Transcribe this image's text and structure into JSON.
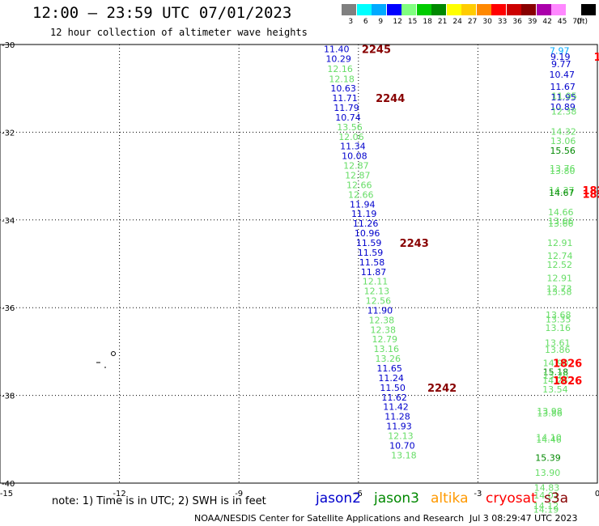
{
  "header": {
    "title": "12:00 – 23:59 UTC 07/01/2023",
    "subtitle": "12 hour collection of altimeter wave heights"
  },
  "legend": {
    "bins": [
      {
        "label": "3",
        "color": "#808080"
      },
      {
        "label": "6",
        "color": "#00ffff"
      },
      {
        "label": "9",
        "color": "#00aaff"
      },
      {
        "label": "12",
        "color": "#0000ff"
      },
      {
        "label": "15",
        "color": "#80ff80"
      },
      {
        "label": "18",
        "color": "#00cc00"
      },
      {
        "label": "21",
        "color": "#008800"
      },
      {
        "label": "24",
        "color": "#ffff00"
      },
      {
        "label": "27",
        "color": "#ffcc00"
      },
      {
        "label": "30",
        "color": "#ff8800"
      },
      {
        "label": "33",
        "color": "#ff0000"
      },
      {
        "label": "36",
        "color": "#cc0000"
      },
      {
        "label": "39",
        "color": "#880000"
      },
      {
        "label": "42",
        "color": "#aa00aa"
      },
      {
        "label": "45",
        "color": "#ff88ff"
      },
      {
        "label": "70",
        "color": "#ffffff"
      },
      {
        "label": "",
        "color": "#000000"
      }
    ],
    "unit": "(ft)"
  },
  "map": {
    "lon_range": [
      -15,
      0
    ],
    "lat_range": [
      -40,
      -30
    ],
    "x_ticks": [
      -15,
      -12,
      -9,
      -6,
      -3,
      0
    ],
    "y_ticks": [
      -30,
      -32,
      -34,
      -36,
      -38,
      -40
    ],
    "x_tick_labels": [
      "-15",
      "-12",
      "-9",
      "-6",
      "-3",
      "0"
    ],
    "y_tick_labels": [
      "-30",
      "-32",
      "-34",
      "-36",
      "-38",
      "-40"
    ],
    "gridlines": true
  },
  "observations": [
    {
      "lon": -6.55,
      "lat": -30.1,
      "text": "11.40",
      "color": "#0000cc"
    },
    {
      "lon": -6.5,
      "lat": -30.32,
      "text": "10.29",
      "color": "#0000cc"
    },
    {
      "lon": -6.46,
      "lat": -30.55,
      "text": "12.16",
      "color": "#66dd66"
    },
    {
      "lon": -6.42,
      "lat": -30.78,
      "text": "12.18",
      "color": "#66dd66"
    },
    {
      "lon": -6.38,
      "lat": -31.0,
      "text": "10.63",
      "color": "#0000cc"
    },
    {
      "lon": -6.34,
      "lat": -31.22,
      "text": "11.71",
      "color": "#0000cc"
    },
    {
      "lon": -6.3,
      "lat": -31.44,
      "text": "11.79",
      "color": "#0000cc"
    },
    {
      "lon": -6.26,
      "lat": -31.66,
      "text": "10.74",
      "color": "#0000cc"
    },
    {
      "lon": -6.22,
      "lat": -31.88,
      "text": "13.56",
      "color": "#66dd66"
    },
    {
      "lon": -6.18,
      "lat": -32.1,
      "text": "12.06",
      "color": "#66dd66"
    },
    {
      "lon": -6.14,
      "lat": -32.32,
      "text": "11.34",
      "color": "#0000cc"
    },
    {
      "lon": -6.1,
      "lat": -32.54,
      "text": "10.08",
      "color": "#0000cc"
    },
    {
      "lon": -6.06,
      "lat": -32.76,
      "text": "12.87",
      "color": "#66dd66"
    },
    {
      "lon": -6.02,
      "lat": -32.98,
      "text": "12.87",
      "color": "#66dd66"
    },
    {
      "lon": -5.98,
      "lat": -33.2,
      "text": "12.66",
      "color": "#66dd66"
    },
    {
      "lon": -5.94,
      "lat": -33.42,
      "text": "12.66",
      "color": "#66dd66"
    },
    {
      "lon": -5.9,
      "lat": -33.64,
      "text": "11.94",
      "color": "#0000cc"
    },
    {
      "lon": -5.86,
      "lat": -33.86,
      "text": "11.19",
      "color": "#0000cc"
    },
    {
      "lon": -5.82,
      "lat": -34.08,
      "text": "11.26",
      "color": "#0000cc"
    },
    {
      "lon": -5.78,
      "lat": -34.3,
      "text": "10.96",
      "color": "#0000cc"
    },
    {
      "lon": -5.74,
      "lat": -34.52,
      "text": "11.59",
      "color": "#0000cc"
    },
    {
      "lon": -5.7,
      "lat": -34.74,
      "text": "11.59",
      "color": "#0000cc"
    },
    {
      "lon": -5.66,
      "lat": -34.96,
      "text": "11.58",
      "color": "#0000cc"
    },
    {
      "lon": -5.62,
      "lat": -35.18,
      "text": "11.87",
      "color": "#0000cc"
    },
    {
      "lon": -5.58,
      "lat": -35.4,
      "text": "12.11",
      "color": "#66dd66"
    },
    {
      "lon": -5.54,
      "lat": -35.62,
      "text": "12.13",
      "color": "#66dd66"
    },
    {
      "lon": -5.5,
      "lat": -35.84,
      "text": "12.56",
      "color": "#66dd66"
    },
    {
      "lon": -5.46,
      "lat": -36.06,
      "text": "11.90",
      "color": "#0000cc"
    },
    {
      "lon": -5.42,
      "lat": -36.28,
      "text": "12.38",
      "color": "#66dd66"
    },
    {
      "lon": -5.38,
      "lat": -36.5,
      "text": "12.38",
      "color": "#66dd66"
    },
    {
      "lon": -5.34,
      "lat": -36.72,
      "text": "12.79",
      "color": "#66dd66"
    },
    {
      "lon": -5.3,
      "lat": -36.94,
      "text": "13.16",
      "color": "#66dd66"
    },
    {
      "lon": -5.26,
      "lat": -37.16,
      "text": "13.26",
      "color": "#66dd66"
    },
    {
      "lon": -5.22,
      "lat": -37.38,
      "text": "11.65",
      "color": "#0000cc"
    },
    {
      "lon": -5.18,
      "lat": -37.6,
      "text": "11.24",
      "color": "#0000cc"
    },
    {
      "lon": -5.14,
      "lat": -37.82,
      "text": "11.50",
      "color": "#0000cc"
    },
    {
      "lon": -5.1,
      "lat": -38.04,
      "text": "11.62",
      "color": "#0000cc"
    },
    {
      "lon": -5.06,
      "lat": -38.26,
      "text": "11.42",
      "color": "#0000cc"
    },
    {
      "lon": -5.02,
      "lat": -38.48,
      "text": "11.28",
      "color": "#0000cc"
    },
    {
      "lon": -4.98,
      "lat": -38.7,
      "text": "11.93",
      "color": "#0000cc"
    },
    {
      "lon": -4.94,
      "lat": -38.92,
      "text": "12.13",
      "color": "#66dd66"
    },
    {
      "lon": -4.9,
      "lat": -39.14,
      "text": "10.70",
      "color": "#0000cc"
    },
    {
      "lon": -4.86,
      "lat": -39.36,
      "text": "13.18",
      "color": "#66dd66"
    },
    {
      "lon": -0.95,
      "lat": -30.14,
      "text": "7.97",
      "color": "#00aaff"
    },
    {
      "lon": -0.93,
      "lat": -30.28,
      "text": "9.19",
      "color": "#0000cc"
    },
    {
      "lon": -0.91,
      "lat": -30.44,
      "text": "9.77",
      "color": "#0000cc"
    },
    {
      "lon": -0.89,
      "lat": -30.68,
      "text": "10.47",
      "color": "#0000cc"
    },
    {
      "lon": -0.87,
      "lat": -30.96,
      "text": "11.67",
      "color": "#0000cc"
    },
    {
      "lon": -0.85,
      "lat": -31.2,
      "text": "11.95",
      "color": "#0000cc"
    },
    {
      "lon": -0.83,
      "lat": -31.17,
      "text": "11.95",
      "color": "#66dd66"
    },
    {
      "lon": -0.87,
      "lat": -31.42,
      "text": "10.89",
      "color": "#0000cc"
    },
    {
      "lon": -0.84,
      "lat": -31.52,
      "text": "12.38",
      "color": "#66dd66"
    },
    {
      "lon": -0.85,
      "lat": -31.98,
      "text": "14.32",
      "color": "#66dd66"
    },
    {
      "lon": -0.86,
      "lat": -32.2,
      "text": "13.06",
      "color": "#66dd66"
    },
    {
      "lon": -0.87,
      "lat": -32.42,
      "text": "15.56",
      "color": "#008800"
    },
    {
      "lon": -0.88,
      "lat": -32.82,
      "text": "13.76",
      "color": "#66dd66"
    },
    {
      "lon": -0.88,
      "lat": -32.88,
      "text": "13.80",
      "color": "#66dd66"
    },
    {
      "lon": -0.9,
      "lat": -33.32,
      "text": "14.37",
      "color": "#66dd66"
    },
    {
      "lon": -0.9,
      "lat": -33.38,
      "text": "14.67",
      "color": "#008800"
    },
    {
      "lon": -0.92,
      "lat": -33.82,
      "text": "14.66",
      "color": "#66dd66"
    },
    {
      "lon": -0.92,
      "lat": -34.02,
      "text": "13.66",
      "color": "#66dd66"
    },
    {
      "lon": -0.92,
      "lat": -34.08,
      "text": "13.66",
      "color": "#66dd66"
    },
    {
      "lon": -0.94,
      "lat": -34.52,
      "text": "12.91",
      "color": "#66dd66"
    },
    {
      "lon": -0.94,
      "lat": -34.82,
      "text": "12.74",
      "color": "#66dd66"
    },
    {
      "lon": -0.95,
      "lat": -35.02,
      "text": "12.52",
      "color": "#66dd66"
    },
    {
      "lon": -0.95,
      "lat": -35.32,
      "text": "12.91",
      "color": "#66dd66"
    },
    {
      "lon": -0.96,
      "lat": -35.56,
      "text": "12.73",
      "color": "#66dd66"
    },
    {
      "lon": -0.96,
      "lat": -35.64,
      "text": "13.58",
      "color": "#66dd66"
    },
    {
      "lon": -0.98,
      "lat": -36.16,
      "text": "13.68",
      "color": "#66dd66"
    },
    {
      "lon": -0.98,
      "lat": -36.26,
      "text": "13.35",
      "color": "#66dd66"
    },
    {
      "lon": -0.99,
      "lat": -36.46,
      "text": "13.16",
      "color": "#66dd66"
    },
    {
      "lon": -1.0,
      "lat": -36.8,
      "text": "13.61",
      "color": "#66dd66"
    },
    {
      "lon": -1.0,
      "lat": -36.96,
      "text": "13.86",
      "color": "#66dd66"
    },
    {
      "lon": -1.05,
      "lat": -37.26,
      "text": "14.90",
      "color": "#66dd66"
    },
    {
      "lon": -1.05,
      "lat": -37.46,
      "text": "15.18",
      "color": "#008800"
    },
    {
      "lon": -1.05,
      "lat": -37.55,
      "text": "13.76",
      "color": "#66dd66"
    },
    {
      "lon": -1.06,
      "lat": -37.66,
      "text": "14.26",
      "color": "#66dd66"
    },
    {
      "lon": -1.06,
      "lat": -37.86,
      "text": "13.54",
      "color": "#66dd66"
    },
    {
      "lon": -1.2,
      "lat": -38.36,
      "text": "13.98",
      "color": "#66dd66"
    },
    {
      "lon": -1.2,
      "lat": -38.4,
      "text": "13.86",
      "color": "#66dd66"
    },
    {
      "lon": -1.22,
      "lat": -38.96,
      "text": "14.10",
      "color": "#66dd66"
    },
    {
      "lon": -1.22,
      "lat": -39.0,
      "text": "14.46",
      "color": "#66dd66"
    },
    {
      "lon": -1.24,
      "lat": -39.42,
      "text": "15.39",
      "color": "#008800"
    },
    {
      "lon": -1.25,
      "lat": -39.76,
      "text": "13.90",
      "color": "#66dd66"
    },
    {
      "lon": -1.27,
      "lat": -40.1,
      "text": "14.83",
      "color": "#66dd66"
    },
    {
      "lon": -1.28,
      "lat": -40.28,
      "text": "14.01",
      "color": "#66dd66"
    },
    {
      "lon": -1.29,
      "lat": -40.52,
      "text": "14.12",
      "color": "#66dd66"
    },
    {
      "lon": -1.29,
      "lat": -40.6,
      "text": "14.19",
      "color": "#66dd66"
    }
  ],
  "pass_labels": [
    {
      "lon": -5.55,
      "lat": -30.1,
      "text": "2245",
      "color": "#880000"
    },
    {
      "lon": -5.2,
      "lat": -31.22,
      "text": "2244",
      "color": "#880000"
    },
    {
      "lon": -4.6,
      "lat": -34.52,
      "text": "2243",
      "color": "#880000"
    },
    {
      "lon": -3.9,
      "lat": -37.82,
      "text": "2242",
      "color": "#880000"
    },
    {
      "lon": 0.0,
      "lat": -30.28,
      "text": "1",
      "color": "#ff0000"
    },
    {
      "lon": -0.1,
      "lat": -33.32,
      "text": "182",
      "color": "#ff0000"
    },
    {
      "lon": -0.1,
      "lat": -33.4,
      "text": "182",
      "color": "#ff0000"
    },
    {
      "lon": -0.75,
      "lat": -37.26,
      "text": "1826",
      "color": "#ff0000"
    },
    {
      "lon": -0.75,
      "lat": -37.66,
      "text": "1826",
      "color": "#ff0000"
    }
  ],
  "footer": {
    "note": "note: 1) Time is in UTC; 2) SWH is in feet",
    "satellites": [
      {
        "name": "jason2",
        "color": "#0000cc"
      },
      {
        "name": "jason3",
        "color": "#008800"
      },
      {
        "name": "altika",
        "color": "#ff9900"
      },
      {
        "name": "cryosat",
        "color": "#ff0000"
      },
      {
        "name": "s3a",
        "color": "#880000"
      }
    ],
    "credit": "NOAA/NESDIS Center for Satellite Applications and Research",
    "timestamp": "Jul  3 08:29:47 UTC 2023"
  }
}
